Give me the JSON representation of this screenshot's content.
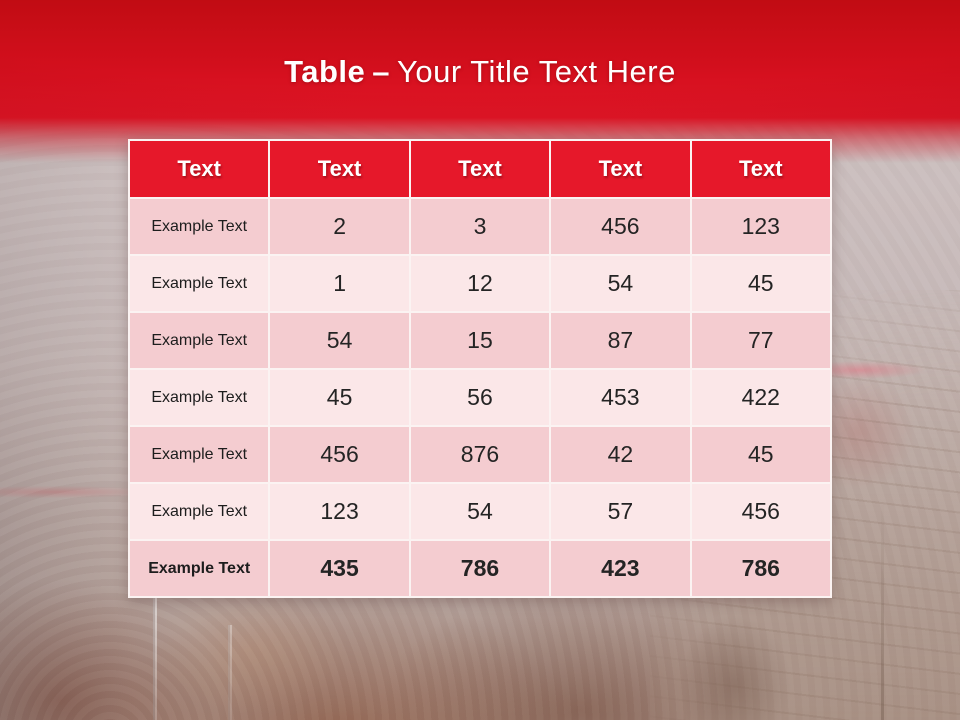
{
  "title": {
    "bold": "Table",
    "separator": "–",
    "rest": "Your Title Text Here"
  },
  "table": {
    "headers": [
      "Text",
      "Text",
      "Text",
      "Text",
      "Text"
    ],
    "rows": [
      {
        "label": "Example Text",
        "values": [
          "2",
          "3",
          "456",
          "123"
        ]
      },
      {
        "label": "Example Text",
        "values": [
          "1",
          "12",
          "54",
          "45"
        ]
      },
      {
        "label": "Example Text",
        "values": [
          "54",
          "15",
          "87",
          "77"
        ]
      },
      {
        "label": "Example Text",
        "values": [
          "45",
          "56",
          "453",
          "422"
        ]
      },
      {
        "label": "Example Text",
        "values": [
          "456",
          "876",
          "42",
          "45"
        ]
      },
      {
        "label": "Example Text",
        "values": [
          "123",
          "54",
          "57",
          "456"
        ]
      },
      {
        "label": "Example Text",
        "values": [
          "435",
          "786",
          "423",
          "786"
        ]
      }
    ]
  },
  "colors": {
    "header_red": "#e6182a",
    "row_dark_pink": "#f4ccd0",
    "row_light_pink": "#fbe7e8",
    "band_red_top": "#c10c13",
    "band_red_bottom": "#ef2937",
    "border_white": "#fbf3f2",
    "title_text": "#ffffff"
  },
  "background": {
    "photo": "washed-out blurred photo: chocolate cake, glass and red cup on wooden table"
  }
}
